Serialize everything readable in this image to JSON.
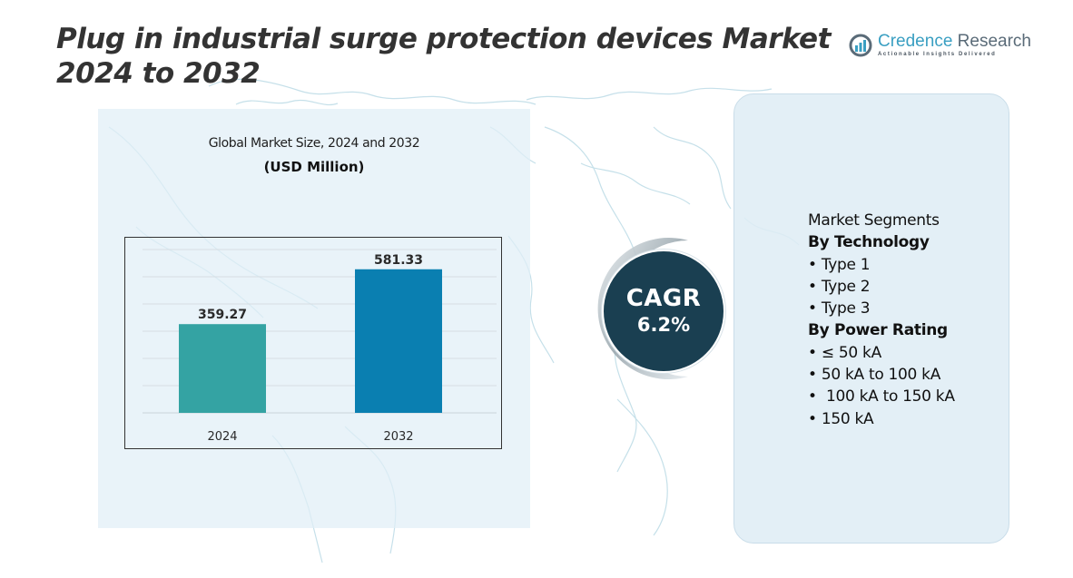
{
  "title": "Plug in industrial surge protection devices Market 2024 to 2032",
  "logo": {
    "name_part1": "Credence",
    "name_part2": " Research",
    "tagline": "Actionable Insights Delivered"
  },
  "chart_panel": {
    "title": "Global Market Size, 2024 and 2032",
    "subtitle": "(USD Million)"
  },
  "chart_data": {
    "type": "bar",
    "title": "Global Market Size, 2024 and 2032",
    "ylabel": "(USD Million)",
    "xlabel": "",
    "categories": [
      "2024",
      "2032"
    ],
    "values": [
      359.27,
      581.33
    ],
    "data_labels": [
      "359.27",
      "581.33"
    ],
    "colors": [
      "#34a3a3",
      "#0a7fb1"
    ],
    "ylim": [
      0,
      650
    ],
    "grid": true,
    "legend": "none"
  },
  "cagr": {
    "label": "CAGR",
    "value": "6.2%"
  },
  "segments": {
    "heading": "Market Segments",
    "groups": [
      {
        "title": "By Technology",
        "items": [
          "Type 1",
          "Type 2",
          "Type 3"
        ]
      },
      {
        "title": "By Power Rating",
        "items": [
          "≤ 50 kA",
          "50 kA to 100 kA",
          " 100 kA to 150 kA",
          "150 kA"
        ]
      }
    ],
    "bullet": "•"
  }
}
